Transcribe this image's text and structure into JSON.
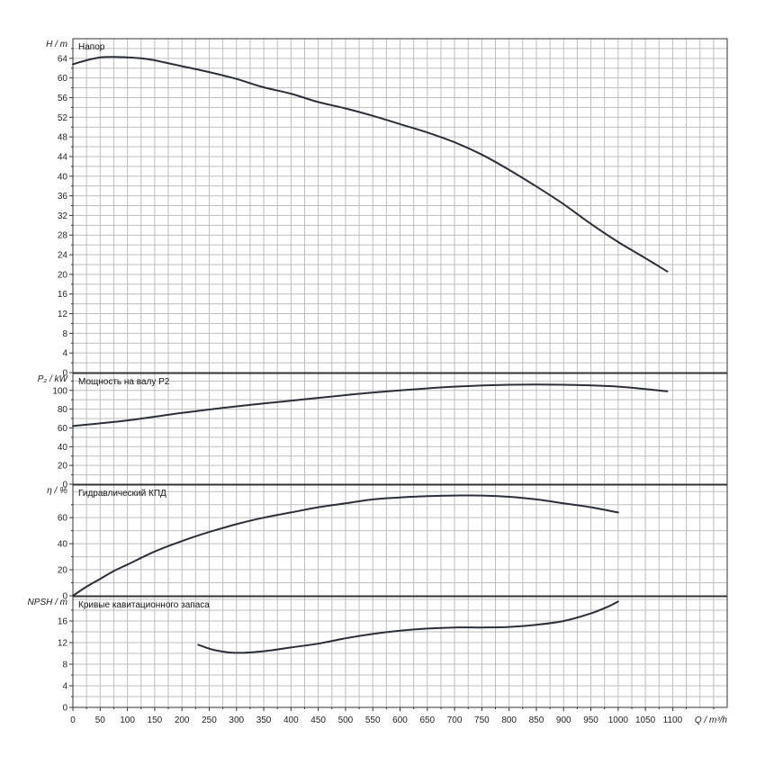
{
  "chart_data": [
    {
      "type": "line",
      "ylabel": "H / m",
      "legend": "Напор",
      "xlim": [
        0,
        1200
      ],
      "ylim": [
        0,
        68
      ],
      "y_ticks": [
        0,
        4,
        8,
        12,
        16,
        20,
        24,
        28,
        32,
        36,
        40,
        44,
        48,
        52,
        56,
        60,
        64
      ],
      "series": [
        {
          "x": [
            0,
            25,
            50,
            75,
            100,
            125,
            150,
            200,
            250,
            300,
            350,
            400,
            450,
            500,
            550,
            600,
            650,
            700,
            750,
            800,
            850,
            900,
            950,
            1000,
            1050,
            1090
          ],
          "y": [
            62.8,
            63.6,
            64.2,
            64.3,
            64.2,
            64.0,
            63.6,
            62.4,
            61.2,
            59.8,
            58.1,
            56.8,
            55.1,
            53.8,
            52.3,
            50.6,
            48.9,
            46.9,
            44.4,
            41.3,
            37.9,
            34.3,
            30.3,
            26.6,
            23.3,
            20.6
          ]
        }
      ]
    },
    {
      "type": "line",
      "ylabel": "P₂ / kW",
      "legend": "Мощность на валу P2",
      "xlim": [
        0,
        1200
      ],
      "ylim": [
        0,
        118
      ],
      "y_ticks": [
        0,
        20,
        40,
        60,
        80,
        100
      ],
      "series": [
        {
          "x": [
            0,
            100,
            200,
            300,
            400,
            500,
            600,
            700,
            800,
            900,
            1000,
            1090
          ],
          "y": [
            62,
            68,
            76,
            83,
            89,
            95,
            100,
            104,
            106,
            106,
            104,
            99
          ]
        }
      ]
    },
    {
      "type": "line",
      "ylabel": "η / %",
      "legend": "Гидравлический КПД",
      "xlim": [
        0,
        1200
      ],
      "ylim": [
        0,
        85
      ],
      "y_ticks": [
        0,
        20,
        40,
        60
      ],
      "series": [
        {
          "x": [
            0,
            25,
            50,
            75,
            100,
            150,
            200,
            250,
            300,
            350,
            400,
            450,
            500,
            550,
            600,
            650,
            700,
            750,
            800,
            850,
            900,
            950,
            1000
          ],
          "y": [
            0,
            7,
            13,
            19,
            24,
            34,
            42,
            49,
            55,
            60,
            64,
            68,
            71,
            74,
            75.5,
            76.5,
            77,
            77,
            76,
            74,
            71,
            68,
            64
          ]
        }
      ]
    },
    {
      "type": "line",
      "ylabel": "NPSH / m",
      "legend": "Кривые кавитационного запаса",
      "xlabel": "Q / m³/h",
      "xlim": [
        0,
        1200
      ],
      "ylim": [
        0,
        20.5
      ],
      "y_ticks": [
        0,
        4,
        8,
        12,
        16
      ],
      "x_ticks": [
        0,
        50,
        100,
        150,
        200,
        250,
        300,
        350,
        400,
        450,
        500,
        550,
        600,
        650,
        700,
        750,
        800,
        850,
        900,
        950,
        1000,
        1050,
        1100
      ],
      "series": [
        {
          "x": [
            230,
            260,
            300,
            350,
            400,
            450,
            500,
            550,
            600,
            650,
            700,
            750,
            800,
            850,
            900,
            950,
            980,
            1000
          ],
          "y": [
            11.6,
            10.6,
            10.1,
            10.4,
            11.1,
            11.8,
            12.8,
            13.6,
            14.2,
            14.6,
            14.8,
            14.8,
            14.9,
            15.3,
            16.0,
            17.4,
            18.6,
            19.6
          ]
        }
      ]
    }
  ]
}
